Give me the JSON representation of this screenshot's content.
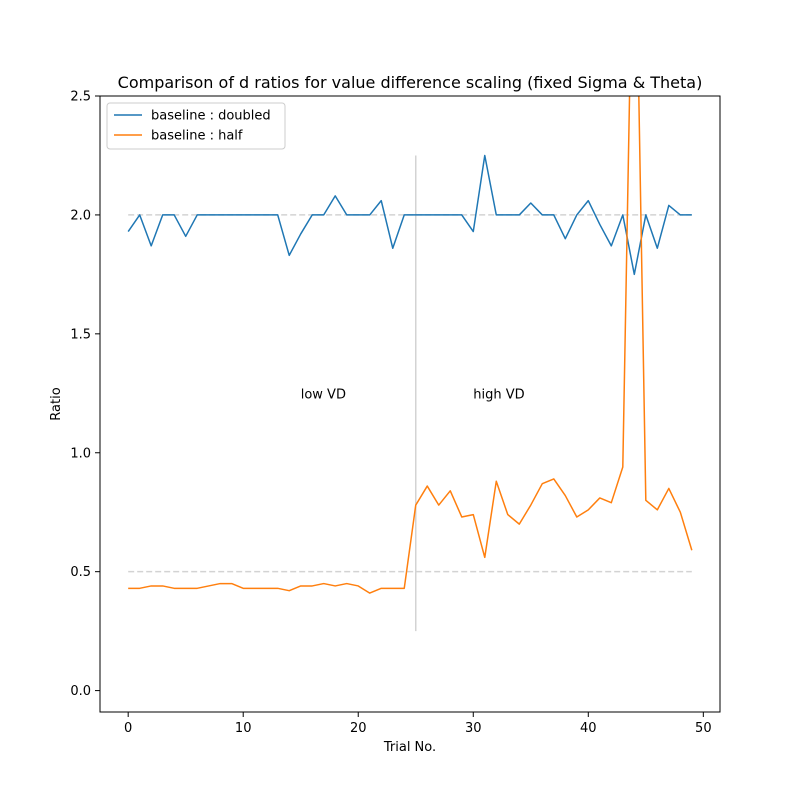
{
  "chart_data": {
    "type": "line",
    "title": "Comparison of d ratios for value difference scaling (fixed Sigma & Theta)",
    "xlabel": "Trial No.",
    "ylabel": "Ratio",
    "xlim": [
      -2.45,
      51.45
    ],
    "ylim": [
      -0.09,
      2.5
    ],
    "xticks": [
      0,
      10,
      20,
      30,
      40,
      50
    ],
    "yticks": [
      0.0,
      0.5,
      1.0,
      1.5,
      2.0,
      2.5
    ],
    "xtick_labels": [
      "0",
      "10",
      "20",
      "30",
      "40",
      "50"
    ],
    "ytick_labels": [
      "0.0",
      "0.5",
      "1.0",
      "1.5",
      "2.0",
      "2.5"
    ],
    "grid": false,
    "legend": {
      "position": "upper-left"
    },
    "x": [
      0,
      1,
      2,
      3,
      4,
      5,
      6,
      7,
      8,
      9,
      10,
      11,
      12,
      13,
      14,
      15,
      16,
      17,
      18,
      19,
      20,
      21,
      22,
      23,
      24,
      25,
      26,
      27,
      28,
      29,
      30,
      31,
      32,
      33,
      34,
      35,
      36,
      37,
      38,
      39,
      40,
      41,
      42,
      43,
      44,
      45,
      46,
      47,
      48,
      49
    ],
    "series": [
      {
        "name": "baseline : doubled",
        "color": "#1f77b4",
        "values": [
          1.93,
          2.0,
          1.87,
          2.0,
          2.0,
          1.91,
          2.0,
          2.0,
          2.0,
          2.0,
          2.0,
          2.0,
          2.0,
          2.0,
          1.83,
          1.92,
          2.0,
          2.0,
          2.08,
          2.0,
          2.0,
          2.0,
          2.06,
          1.86,
          2.0,
          2.0,
          2.0,
          2.0,
          2.0,
          2.0,
          1.93,
          2.25,
          2.0,
          2.0,
          2.0,
          2.05,
          2.0,
          2.0,
          1.9,
          2.0,
          2.06,
          1.96,
          1.87,
          2.0,
          1.75,
          2.0,
          1.86,
          2.04,
          2.0,
          2.0
        ]
      },
      {
        "name": "baseline : half",
        "color": "#ff7f0e",
        "values": [
          0.43,
          0.43,
          0.44,
          0.44,
          0.43,
          0.43,
          0.43,
          0.44,
          0.45,
          0.45,
          0.43,
          0.43,
          0.43,
          0.43,
          0.42,
          0.44,
          0.44,
          0.45,
          0.44,
          0.45,
          0.44,
          0.41,
          0.43,
          0.43,
          0.43,
          0.78,
          0.86,
          0.78,
          0.84,
          0.73,
          0.74,
          0.56,
          0.88,
          0.74,
          0.7,
          0.78,
          0.87,
          0.89,
          0.82,
          0.73,
          0.76,
          0.81,
          0.79,
          0.94,
          3.6,
          0.8,
          0.76,
          0.85,
          0.75,
          0.59
        ]
      }
    ],
    "reference_lines": [
      {
        "y": 2.0,
        "x_range": [
          0,
          49
        ],
        "style": "dashed",
        "color": "#d3d3d3"
      },
      {
        "y": 0.5,
        "x_range": [
          0,
          49
        ],
        "style": "dashed",
        "color": "#d3d3d3"
      }
    ],
    "vertical_line": {
      "x": 25,
      "y_range": [
        0.25,
        2.25
      ],
      "color": "#d3d3d3"
    },
    "annotations": [
      {
        "text": "low VD",
        "x": 15,
        "y": 1.25
      },
      {
        "text": "high VD",
        "x": 30,
        "y": 1.25
      }
    ]
  }
}
